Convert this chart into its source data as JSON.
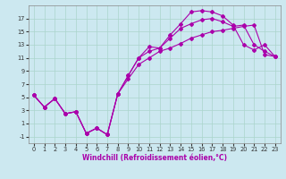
{
  "xlabel": "Windchill (Refroidissement éolien,°C)",
  "background_color": "#cce8f0",
  "grid_color": "#aad4cc",
  "line_color": "#aa00aa",
  "line1_x": [
    0,
    1,
    2,
    3,
    4,
    5,
    6,
    7,
    8,
    9,
    10,
    11,
    12,
    13,
    14,
    15,
    16,
    17,
    18,
    19,
    20,
    21,
    22,
    23
  ],
  "line1_y": [
    5.3,
    3.5,
    4.8,
    2.5,
    2.8,
    -0.5,
    0.3,
    -0.7,
    5.5,
    8.3,
    11.0,
    12.7,
    12.5,
    14.5,
    16.2,
    18.0,
    18.2,
    18.0,
    17.4,
    16.0,
    13.0,
    12.2,
    13.0,
    11.2
  ],
  "line2_x": [
    0,
    1,
    2,
    3,
    4,
    5,
    6,
    7,
    8,
    9,
    10,
    11,
    12,
    13,
    14,
    15,
    16,
    17,
    18,
    19,
    20,
    21,
    22,
    23
  ],
  "line2_y": [
    5.3,
    3.5,
    4.8,
    2.5,
    2.8,
    -0.5,
    0.3,
    -0.7,
    5.5,
    8.3,
    11.0,
    12.0,
    12.5,
    14.0,
    15.5,
    16.2,
    16.8,
    17.0,
    16.5,
    15.8,
    16.0,
    13.0,
    12.0,
    11.2
  ],
  "line3_x": [
    0,
    1,
    2,
    3,
    4,
    5,
    6,
    7,
    8,
    9,
    10,
    11,
    12,
    13,
    14,
    15,
    16,
    17,
    18,
    19,
    20,
    21,
    22,
    23
  ],
  "line3_y": [
    5.3,
    3.5,
    4.8,
    2.5,
    2.8,
    -0.5,
    0.3,
    -0.7,
    5.5,
    7.8,
    10.0,
    11.0,
    12.0,
    12.5,
    13.2,
    14.0,
    14.5,
    15.0,
    15.2,
    15.5,
    15.8,
    16.0,
    11.5,
    11.2
  ],
  "ylim": [
    -2.0,
    19.0
  ],
  "xlim": [
    -0.5,
    23.5
  ],
  "yticks": [
    -1,
    1,
    3,
    5,
    7,
    9,
    11,
    13,
    15,
    17
  ],
  "xticks": [
    0,
    1,
    2,
    3,
    4,
    5,
    6,
    7,
    8,
    9,
    10,
    11,
    12,
    13,
    14,
    15,
    16,
    17,
    18,
    19,
    20,
    21,
    22,
    23
  ],
  "ylabel_fontsize": 5.5,
  "xlabel_fontsize": 5.5,
  "tick_fontsize": 4.8
}
